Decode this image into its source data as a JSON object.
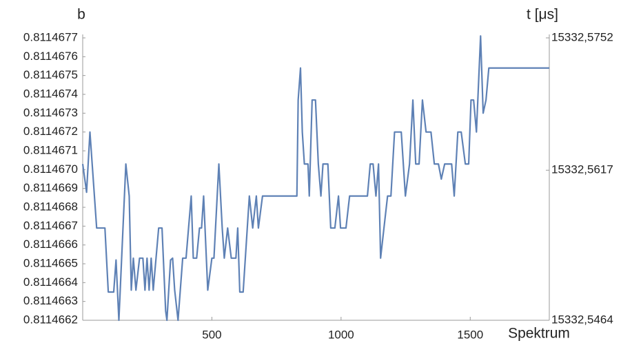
{
  "chart_data": {
    "type": "line",
    "ylabel": "b",
    "y2label": "t [μs]",
    "xlabel": "Spektrum",
    "xlim": [
      0,
      1806
    ],
    "xticks": [
      500,
      1000,
      1500
    ],
    "ylim": [
      0.8114662,
      0.8114677
    ],
    "yticks": [
      0.8114662,
      0.8114663,
      0.8114664,
      0.8114665,
      0.8114666,
      0.8114667,
      0.8114668,
      0.8114669,
      {
        "value": 0.811467,
        "label": "0.8114670"
      },
      0.8114671,
      0.8114672,
      0.8114673,
      0.8114674,
      0.8114675,
      0.8114676,
      0.8114677
    ],
    "y2lim": [
      15332.5464,
      15332.5752
    ],
    "y2ticks": [
      {
        "value": 15332.5464,
        "label": "15332,5464"
      },
      {
        "value": 15332.5617,
        "label": "15332,5617"
      },
      {
        "value": 15332.5752,
        "label": "15332,5752"
      }
    ],
    "series": [
      {
        "color": "#5e81b5",
        "x": [
          0,
          15,
          28,
          54,
          86,
          99,
          120,
          129,
          140,
          167,
          180,
          188,
          196,
          206,
          220,
          233,
          241,
          249,
          257,
          265,
          273,
          294,
          307,
          321,
          326,
          340,
          348,
          356,
          369,
          387,
          400,
          420,
          428,
          441,
          452,
          460,
          468,
          484,
          500,
          508,
          527,
          540,
          548,
          561,
          575,
          593,
          600,
          608,
          621,
          645,
          658,
          672,
          680,
          696,
          829,
          834,
          843,
          850,
          858,
          872,
          877,
          888,
          901,
          912,
          922,
          930,
          949,
          960,
          976,
          990,
          998,
          1019,
          1033,
          1102,
          1113,
          1124,
          1135,
          1145,
          1153,
          1166,
          1180,
          1193,
          1207,
          1233,
          1249,
          1265,
          1278,
          1289,
          1302,
          1315,
          1329,
          1348,
          1361,
          1377,
          1388,
          1401,
          1428,
          1438,
          1452,
          1465,
          1481,
          1494,
          1503,
          1513,
          1524,
          1540,
          1550,
          1561,
          1572,
          1806
        ],
        "values": [
          0.81146703,
          0.81146688,
          0.8114672,
          0.81146669,
          0.81146669,
          0.81146635,
          0.81146635,
          0.81146652,
          0.8114662,
          0.81146703,
          0.81146686,
          0.81146636,
          0.81146653,
          0.81146636,
          0.81146653,
          0.81146653,
          0.81146636,
          0.81146653,
          0.81146636,
          0.81146653,
          0.81146636,
          0.81146669,
          0.81146669,
          0.81146625,
          0.8114662,
          0.81146652,
          0.81146653,
          0.81146636,
          0.8114662,
          0.81146653,
          0.81146653,
          0.81146686,
          0.81146653,
          0.81146653,
          0.81146669,
          0.81146669,
          0.81146686,
          0.81146636,
          0.81146653,
          0.81146653,
          0.81146703,
          0.81146669,
          0.81146653,
          0.81146669,
          0.81146653,
          0.81146653,
          0.81146669,
          0.81146635,
          0.81146635,
          0.81146686,
          0.81146669,
          0.81146686,
          0.81146669,
          0.81146686,
          0.81146686,
          0.81146737,
          0.81146754,
          0.8114672,
          0.81146703,
          0.81146703,
          0.81146686,
          0.81146737,
          0.81146737,
          0.81146703,
          0.81146686,
          0.81146703,
          0.81146703,
          0.81146669,
          0.81146669,
          0.81146686,
          0.81146669,
          0.81146669,
          0.81146686,
          0.81146686,
          0.81146703,
          0.81146703,
          0.81146686,
          0.81146703,
          0.81146653,
          0.81146669,
          0.81146686,
          0.81146686,
          0.8114672,
          0.8114672,
          0.81146686,
          0.81146703,
          0.81146737,
          0.81146703,
          0.81146703,
          0.81146737,
          0.8114672,
          0.8114672,
          0.81146703,
          0.81146703,
          0.81146695,
          0.81146703,
          0.81146703,
          0.81146686,
          0.8114672,
          0.8114672,
          0.81146703,
          0.81146703,
          0.81146737,
          0.81146737,
          0.8114672,
          0.81146771,
          0.8114673,
          0.81146737,
          0.81146754,
          0.81146754
        ]
      }
    ]
  }
}
